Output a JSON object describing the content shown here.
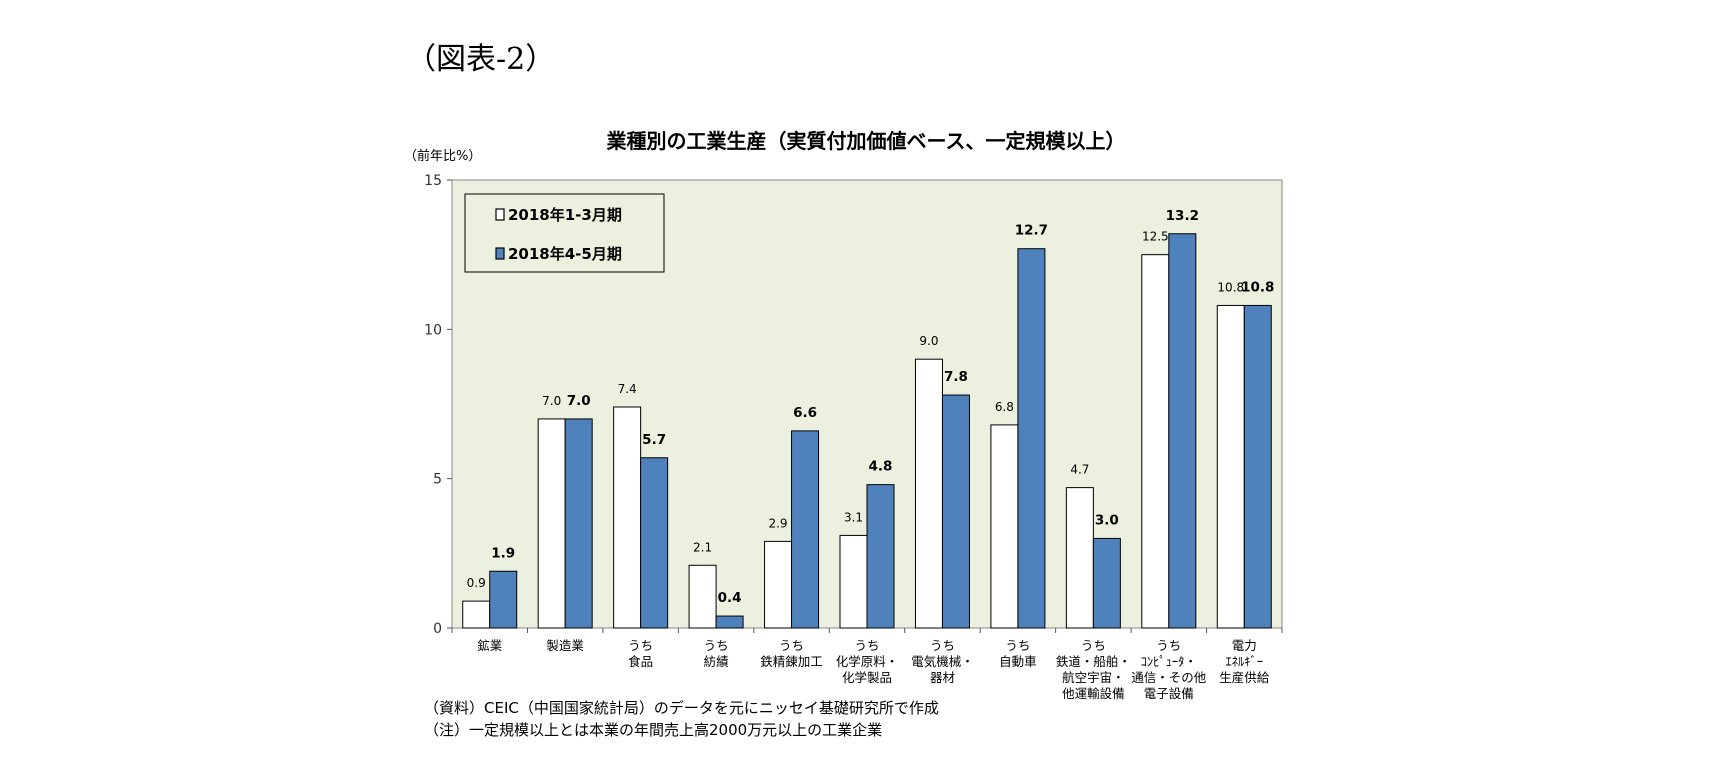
{
  "figure_label": "（図表-2）",
  "notes": [
    "（資料）CEIC（中国国家統計局）のデータを元にニッセイ基礎研究所で作成",
    "（注）一定規模以上とは本業の年間売上高2000万元以上の工業企業"
  ],
  "colors": {
    "plot_bg": "#ebf1de",
    "series1": "#ffffff",
    "series2": "#4f81bd",
    "edge": "#000000"
  },
  "chart_data": {
    "type": "bar",
    "title": "業種別の工業生産（実質付加価値ベース、一定規模以上）",
    "ylabel": "（前年比%）",
    "xlabel": "",
    "ylim": [
      0,
      15
    ],
    "yticks": [
      0,
      5,
      10,
      15
    ],
    "grid": false,
    "legend_position": "top-left",
    "categories": [
      [
        "鉱業"
      ],
      [
        "製造業"
      ],
      [
        "うち",
        "食品"
      ],
      [
        "うち",
        "紡績"
      ],
      [
        "うち",
        "鉄精錬加工"
      ],
      [
        "うち",
        "化学原料・",
        "化学製品"
      ],
      [
        "うち",
        "電気機械・",
        "器材"
      ],
      [
        "うち",
        "自動車"
      ],
      [
        "うち",
        "鉄道・船舶・",
        "航空宇宙・",
        "他運輸設備"
      ],
      [
        "うち",
        "ｺﾝﾋﾟｭｰﾀ・",
        "通信・その他",
        "電子設備"
      ],
      [
        "電力",
        "ｴﾈﾙｷﾞｰ",
        "生産供給"
      ]
    ],
    "series": [
      {
        "name": "2018年1-3月期",
        "values": [
          0.9,
          7.0,
          7.4,
          2.1,
          2.9,
          3.1,
          9.0,
          6.8,
          4.7,
          12.5,
          10.8
        ],
        "labels": [
          "0.9",
          "7.0",
          "7.4",
          "2.1",
          "2.9",
          "3.1",
          "9.0",
          "6.8",
          "4.7",
          "12.5",
          "10.8"
        ]
      },
      {
        "name": "2018年4-5月期",
        "values": [
          1.9,
          7.0,
          5.7,
          0.4,
          6.6,
          4.8,
          7.8,
          12.7,
          3.0,
          13.2,
          10.8
        ],
        "labels": [
          "1.9",
          "7.0",
          "5.7",
          "0.4",
          "6.6",
          "4.8",
          "7.8",
          "12.7",
          "3.0",
          "13.2",
          "10.8"
        ]
      }
    ]
  }
}
